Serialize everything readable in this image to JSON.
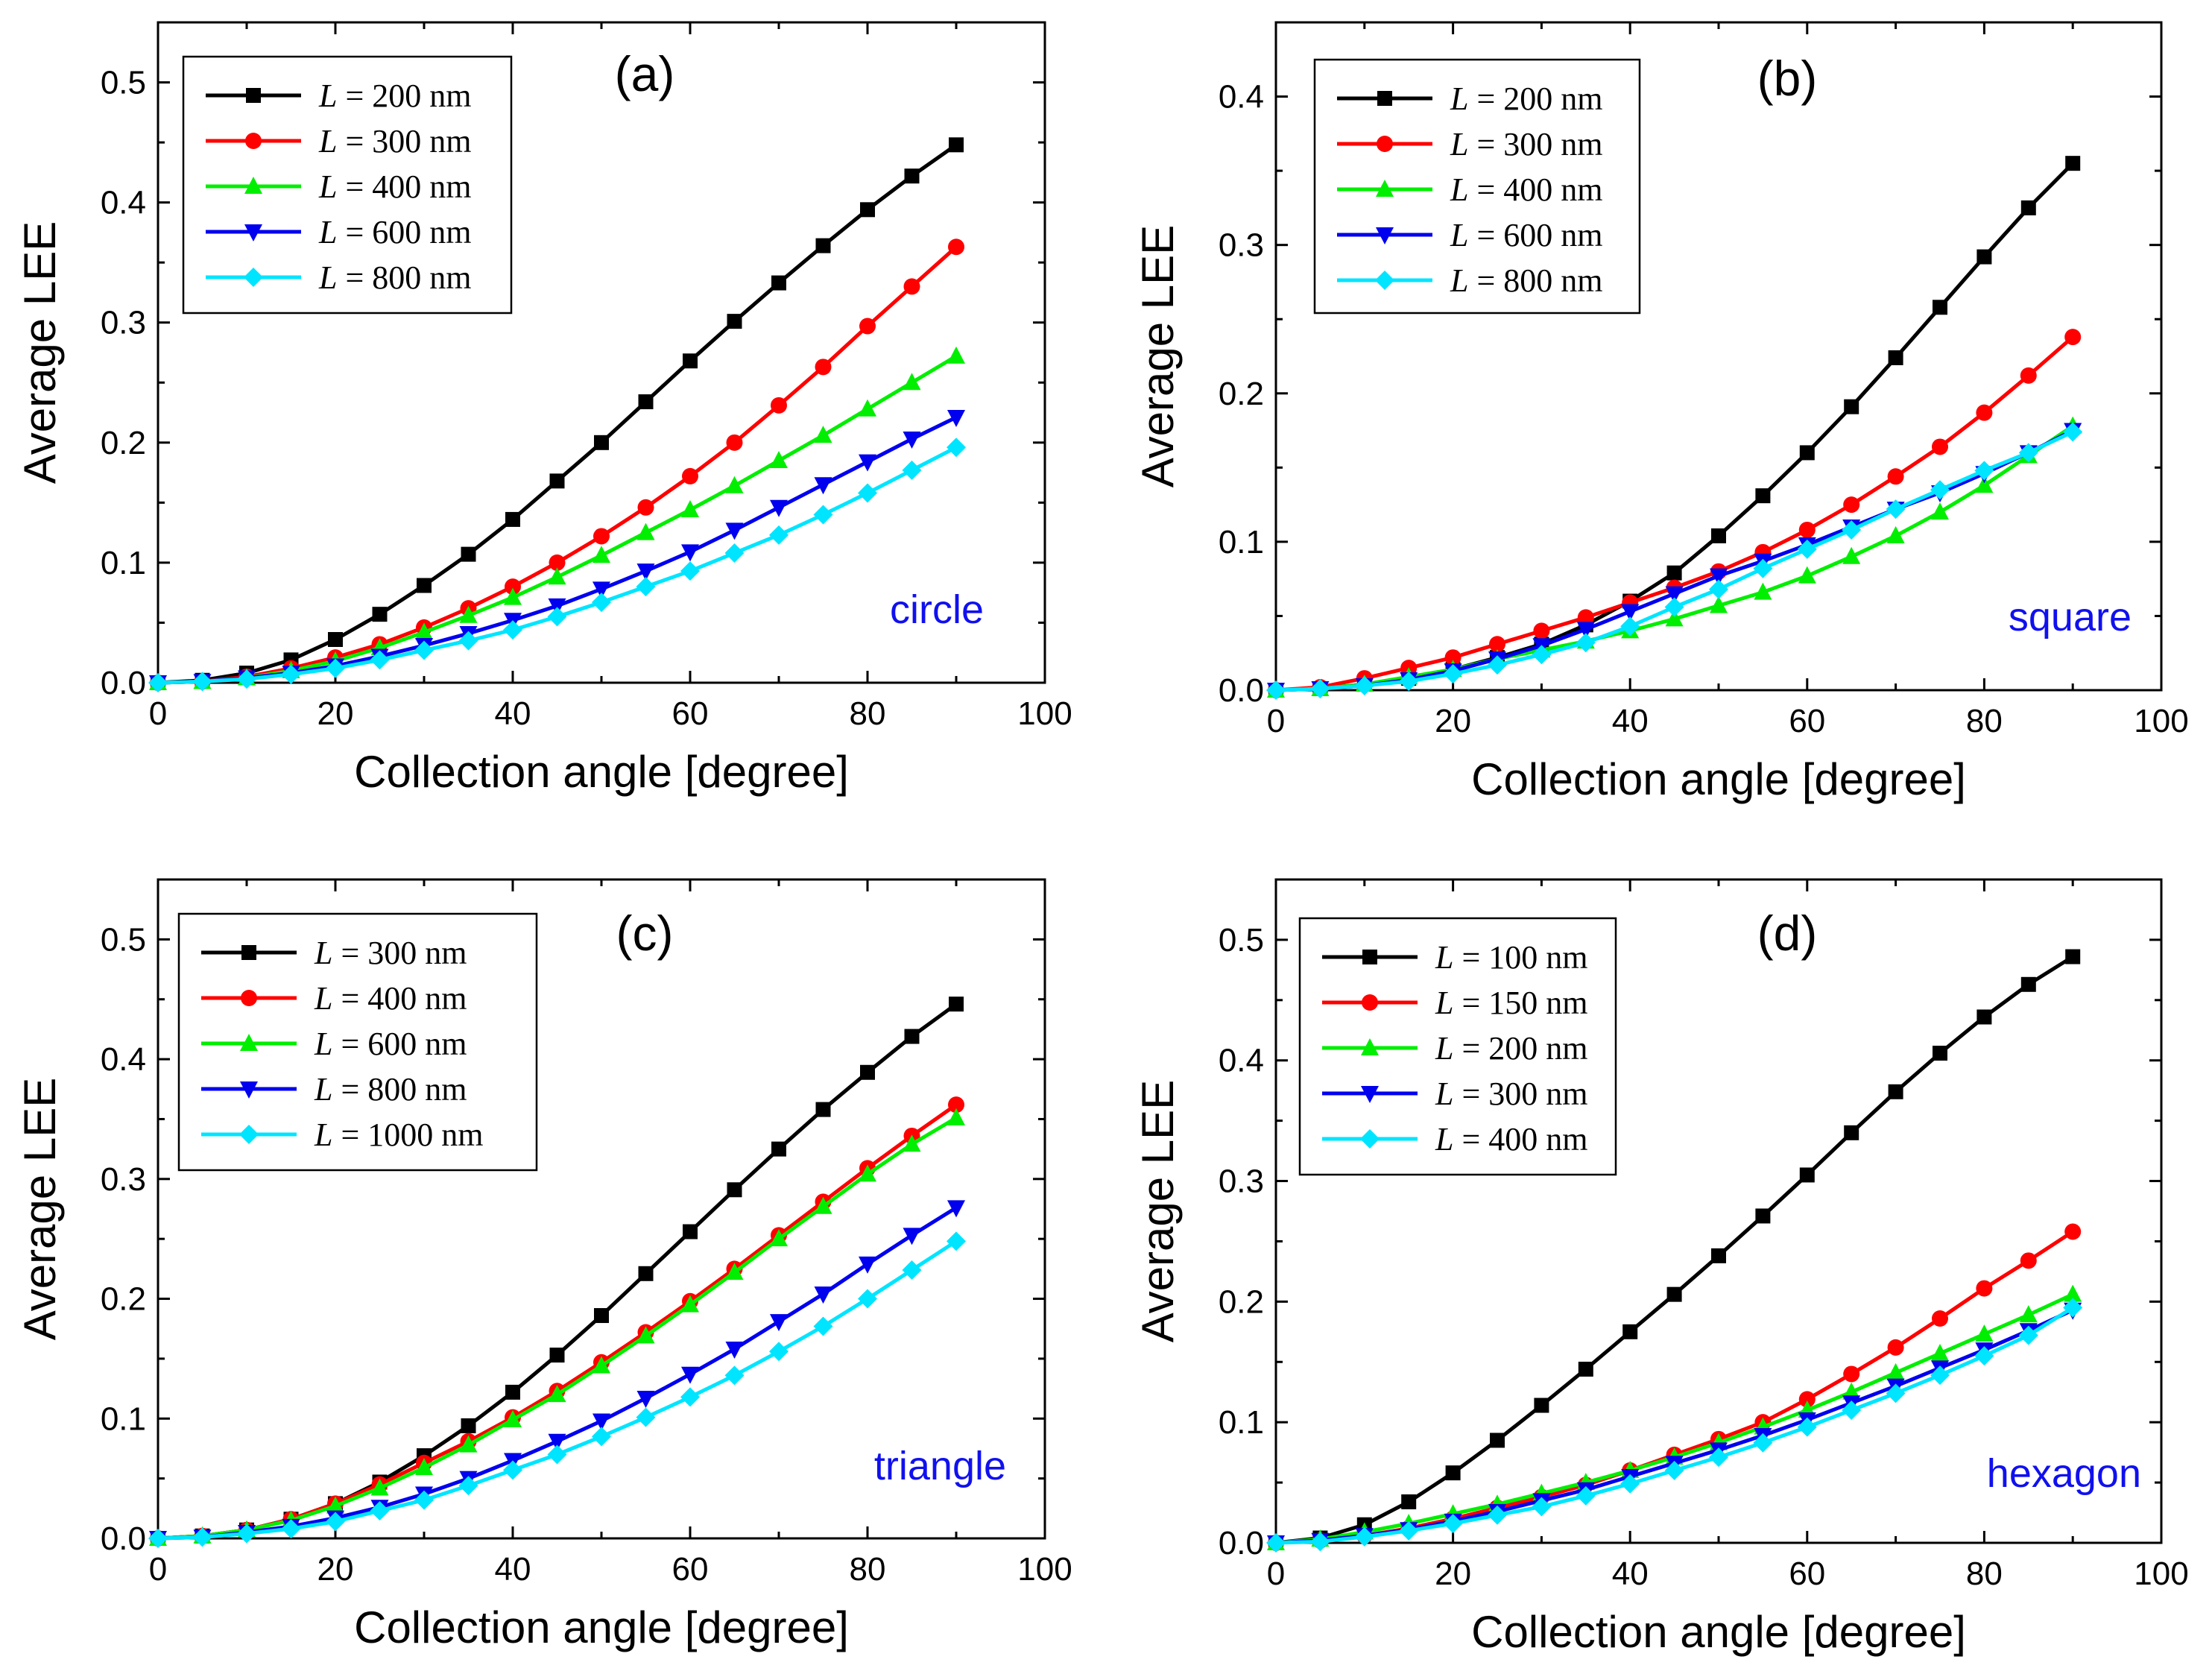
{
  "chart_data": [
    {
      "type": "line",
      "title": "(a)",
      "annotation": "circle",
      "annotation_color": "#1010ee",
      "xlabel": "Collection angle [degree]",
      "ylabel": "Average LEE",
      "xlim": [
        0,
        100
      ],
      "ylim": [
        0,
        0.55
      ],
      "xticks": [
        0,
        20,
        40,
        60,
        80,
        100
      ],
      "xtick_labels": [
        "0",
        "20",
        "40",
        "60",
        "80",
        "100"
      ],
      "yticks": [
        0,
        0.1,
        0.2,
        0.3,
        0.4,
        0.5
      ],
      "ytick_labels": [
        "0.0",
        "0.1",
        "0.2",
        "0.3",
        "0.4",
        "0.5"
      ],
      "legend_position": "top-left",
      "x": [
        0,
        5,
        10,
        15,
        20,
        25,
        30,
        35,
        40,
        45,
        50,
        55,
        60,
        65,
        70,
        75,
        80,
        85,
        90
      ],
      "series": [
        {
          "name_var": "L",
          "name_rest": " = 200 nm",
          "color": "#000000",
          "marker": "square",
          "values": [
            0.0,
            0.002,
            0.008,
            0.019,
            0.036,
            0.057,
            0.081,
            0.107,
            0.136,
            0.168,
            0.2,
            0.234,
            0.268,
            0.301,
            0.333,
            0.364,
            0.394,
            0.422,
            0.448
          ]
        },
        {
          "name_var": "L",
          "name_rest": " = 300 nm",
          "color": "#ff0000",
          "marker": "circle",
          "values": [
            0.0,
            0.001,
            0.005,
            0.012,
            0.021,
            0.032,
            0.046,
            0.062,
            0.08,
            0.1,
            0.122,
            0.146,
            0.172,
            0.2,
            0.231,
            0.263,
            0.297,
            0.33,
            0.363
          ]
        },
        {
          "name_var": "L",
          "name_rest": " = 400 nm",
          "color": "#00ee00",
          "marker": "triangle-up",
          "values": [
            0.0,
            0.001,
            0.004,
            0.01,
            0.018,
            0.029,
            0.042,
            0.056,
            0.071,
            0.088,
            0.106,
            0.125,
            0.144,
            0.164,
            0.185,
            0.206,
            0.228,
            0.25,
            0.272
          ]
        },
        {
          "name_var": "L",
          "name_rest": " = 600 nm",
          "color": "#0000ee",
          "marker": "triangle-down",
          "values": [
            0.0,
            0.001,
            0.004,
            0.008,
            0.014,
            0.022,
            0.031,
            0.041,
            0.052,
            0.064,
            0.078,
            0.093,
            0.109,
            0.127,
            0.146,
            0.165,
            0.184,
            0.203,
            0.221
          ]
        },
        {
          "name_var": "L",
          "name_rest": " = 800 nm",
          "color": "#00e5ff",
          "marker": "diamond",
          "values": [
            0.0,
            0.001,
            0.003,
            0.007,
            0.012,
            0.019,
            0.027,
            0.035,
            0.044,
            0.055,
            0.067,
            0.08,
            0.093,
            0.108,
            0.123,
            0.14,
            0.158,
            0.177,
            0.196
          ]
        }
      ]
    },
    {
      "type": "line",
      "title": "(b)",
      "annotation": "square",
      "annotation_color": "#1010ee",
      "xlabel": "Collection angle [degree]",
      "ylabel": "Average LEE",
      "xlim": [
        0,
        100
      ],
      "ylim": [
        0,
        0.45
      ],
      "xticks": [
        0,
        20,
        40,
        60,
        80,
        100
      ],
      "xtick_labels": [
        "0",
        "20",
        "40",
        "60",
        "80",
        "100"
      ],
      "yticks": [
        0,
        0.1,
        0.2,
        0.3,
        0.4
      ],
      "ytick_labels": [
        "0.0",
        "0.1",
        "0.2",
        "0.3",
        "0.4"
      ],
      "legend_position": "top-left",
      "x": [
        0,
        5,
        10,
        15,
        20,
        25,
        30,
        35,
        40,
        45,
        50,
        55,
        60,
        65,
        70,
        75,
        80,
        85,
        90
      ],
      "series": [
        {
          "name_var": "L",
          "name_rest": " = 200 nm",
          "color": "#000000",
          "marker": "square",
          "values": [
            0.0,
            0.001,
            0.004,
            0.008,
            0.014,
            0.022,
            0.031,
            0.044,
            0.06,
            0.079,
            0.104,
            0.131,
            0.16,
            0.191,
            0.224,
            0.258,
            0.292,
            0.325,
            0.355
          ]
        },
        {
          "name_var": "L",
          "name_rest": " = 300 nm",
          "color": "#ff0000",
          "marker": "circle",
          "values": [
            0.0,
            0.002,
            0.008,
            0.015,
            0.022,
            0.031,
            0.04,
            0.049,
            0.059,
            0.069,
            0.08,
            0.093,
            0.108,
            0.125,
            0.144,
            0.164,
            0.187,
            0.212,
            0.238
          ]
        },
        {
          "name_var": "L",
          "name_rest": " = 400 nm",
          "color": "#00ee00",
          "marker": "triangle-up",
          "values": [
            0.0,
            0.001,
            0.004,
            0.009,
            0.014,
            0.021,
            0.027,
            0.033,
            0.04,
            0.048,
            0.057,
            0.066,
            0.077,
            0.09,
            0.104,
            0.12,
            0.138,
            0.158,
            0.178
          ]
        },
        {
          "name_var": "L",
          "name_rest": " = 600 nm",
          "color": "#0000ee",
          "marker": "triangle-down",
          "values": [
            0.0,
            0.001,
            0.003,
            0.007,
            0.013,
            0.021,
            0.03,
            0.041,
            0.053,
            0.065,
            0.077,
            0.087,
            0.098,
            0.11,
            0.122,
            0.133,
            0.146,
            0.16,
            0.175
          ]
        },
        {
          "name_var": "L",
          "name_rest": " = 800 nm",
          "color": "#00e5ff",
          "marker": "diamond",
          "values": [
            0.0,
            0.001,
            0.003,
            0.006,
            0.011,
            0.017,
            0.024,
            0.032,
            0.043,
            0.056,
            0.068,
            0.082,
            0.095,
            0.108,
            0.122,
            0.135,
            0.148,
            0.16,
            0.174
          ]
        }
      ]
    },
    {
      "type": "line",
      "title": "(c)",
      "annotation": "triangle",
      "annotation_color": "#1010ee",
      "xlabel": "Collection angle [degree]",
      "ylabel": "Average LEE",
      "xlim": [
        0,
        100
      ],
      "ylim": [
        0,
        0.55
      ],
      "xticks": [
        0,
        20,
        40,
        60,
        80,
        100
      ],
      "xtick_labels": [
        "0",
        "20",
        "40",
        "60",
        "80",
        "100"
      ],
      "yticks": [
        0,
        0.1,
        0.2,
        0.3,
        0.4,
        0.5
      ],
      "ytick_labels": [
        "0.0",
        "0.1",
        "0.2",
        "0.3",
        "0.4",
        "0.5"
      ],
      "legend_position": "top-left",
      "x": [
        0,
        5,
        10,
        15,
        20,
        25,
        30,
        35,
        40,
        45,
        50,
        55,
        60,
        65,
        70,
        75,
        80,
        85,
        90
      ],
      "series": [
        {
          "name_var": "L",
          "name_rest": " = 300 nm",
          "color": "#000000",
          "marker": "square",
          "values": [
            0.0,
            0.002,
            0.007,
            0.016,
            0.029,
            0.047,
            0.069,
            0.094,
            0.122,
            0.153,
            0.186,
            0.221,
            0.256,
            0.291,
            0.325,
            0.358,
            0.389,
            0.419,
            0.446
          ]
        },
        {
          "name_var": "L",
          "name_rest": " = 400 nm",
          "color": "#ff0000",
          "marker": "circle",
          "values": [
            0.0,
            0.002,
            0.007,
            0.016,
            0.029,
            0.045,
            0.063,
            0.081,
            0.101,
            0.123,
            0.147,
            0.172,
            0.198,
            0.225,
            0.253,
            0.281,
            0.309,
            0.336,
            0.362
          ]
        },
        {
          "name_var": "L",
          "name_rest": " = 600 nm",
          "color": "#00ee00",
          "marker": "triangle-up",
          "values": [
            0.0,
            0.002,
            0.007,
            0.015,
            0.027,
            0.042,
            0.059,
            0.078,
            0.099,
            0.12,
            0.144,
            0.169,
            0.195,
            0.222,
            0.25,
            0.277,
            0.304,
            0.329,
            0.351
          ]
        },
        {
          "name_var": "L",
          "name_rest": " = 800 nm",
          "color": "#0000ee",
          "marker": "triangle-down",
          "values": [
            0.0,
            0.001,
            0.005,
            0.01,
            0.017,
            0.026,
            0.037,
            0.05,
            0.065,
            0.081,
            0.098,
            0.117,
            0.137,
            0.158,
            0.181,
            0.204,
            0.229,
            0.253,
            0.276
          ]
        },
        {
          "name_var": "L",
          "name_rest": " = 1000 nm",
          "color": "#00e5ff",
          "marker": "diamond",
          "values": [
            0.0,
            0.001,
            0.004,
            0.008,
            0.014,
            0.023,
            0.032,
            0.044,
            0.057,
            0.07,
            0.085,
            0.101,
            0.118,
            0.136,
            0.156,
            0.177,
            0.2,
            0.224,
            0.248
          ]
        }
      ]
    },
    {
      "type": "line",
      "title": "(d)",
      "annotation": "hexagon",
      "annotation_color": "#1010ee",
      "xlabel": "Collection angle [degree]",
      "ylabel": "Average LEE",
      "xlim": [
        0,
        100
      ],
      "ylim": [
        0,
        0.55
      ],
      "xticks": [
        0,
        20,
        40,
        60,
        80,
        100
      ],
      "xtick_labels": [
        "0",
        "20",
        "40",
        "60",
        "80",
        "100"
      ],
      "yticks": [
        0,
        0.1,
        0.2,
        0.3,
        0.4,
        0.5
      ],
      "ytick_labels": [
        "0.0",
        "0.1",
        "0.2",
        "0.3",
        "0.4",
        "0.5"
      ],
      "legend_position": "top-left",
      "x": [
        0,
        5,
        10,
        15,
        20,
        25,
        30,
        35,
        40,
        45,
        50,
        55,
        60,
        65,
        70,
        75,
        80,
        85,
        90
      ],
      "series": [
        {
          "name_var": "L",
          "name_rest": " = 100 nm",
          "color": "#000000",
          "marker": "square",
          "values": [
            0.0,
            0.004,
            0.015,
            0.034,
            0.058,
            0.085,
            0.114,
            0.144,
            0.175,
            0.206,
            0.238,
            0.271,
            0.305,
            0.34,
            0.374,
            0.406,
            0.436,
            0.463,
            0.486
          ]
        },
        {
          "name_var": "L",
          "name_rest": " = 150 nm",
          "color": "#ff0000",
          "marker": "circle",
          "values": [
            0.0,
            0.002,
            0.006,
            0.012,
            0.02,
            0.029,
            0.038,
            0.048,
            0.06,
            0.073,
            0.086,
            0.1,
            0.119,
            0.14,
            0.162,
            0.186,
            0.211,
            0.234,
            0.258
          ]
        },
        {
          "name_var": "L",
          "name_rest": " = 200 nm",
          "color": "#00ee00",
          "marker": "triangle-up",
          "values": [
            0.0,
            0.003,
            0.009,
            0.016,
            0.024,
            0.032,
            0.041,
            0.05,
            0.06,
            0.071,
            0.083,
            0.096,
            0.11,
            0.125,
            0.141,
            0.157,
            0.173,
            0.189,
            0.206
          ]
        },
        {
          "name_var": "L",
          "name_rest": " = 300 nm",
          "color": "#0000ee",
          "marker": "triangle-down",
          "values": [
            0.0,
            0.002,
            0.006,
            0.011,
            0.018,
            0.026,
            0.035,
            0.044,
            0.055,
            0.066,
            0.077,
            0.089,
            0.102,
            0.116,
            0.13,
            0.145,
            0.16,
            0.176,
            0.193
          ]
        },
        {
          "name_var": "L",
          "name_rest": " = 400 nm",
          "color": "#00e5ff",
          "marker": "diamond",
          "values": [
            0.0,
            0.001,
            0.005,
            0.01,
            0.016,
            0.023,
            0.03,
            0.039,
            0.049,
            0.06,
            0.071,
            0.083,
            0.096,
            0.11,
            0.124,
            0.139,
            0.155,
            0.172,
            0.195
          ]
        }
      ]
    }
  ]
}
